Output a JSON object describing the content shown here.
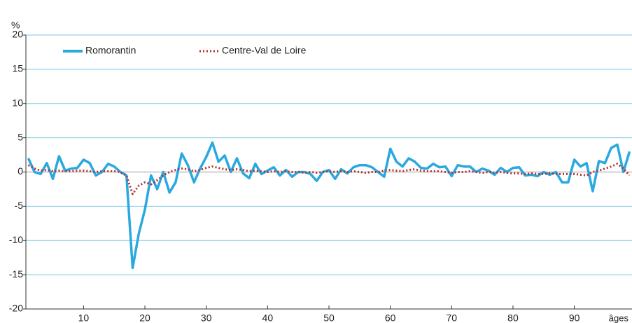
{
  "chart_data": {
    "type": "line",
    "ylabel": "%",
    "xlabel": "âges",
    "x": [
      1,
      2,
      3,
      4,
      5,
      6,
      7,
      8,
      9,
      10,
      11,
      12,
      13,
      14,
      15,
      16,
      17,
      18,
      19,
      20,
      21,
      22,
      23,
      24,
      25,
      26,
      27,
      28,
      29,
      30,
      31,
      32,
      33,
      34,
      35,
      36,
      37,
      38,
      39,
      40,
      41,
      42,
      43,
      44,
      45,
      46,
      47,
      48,
      49,
      50,
      51,
      52,
      53,
      54,
      55,
      56,
      57,
      58,
      59,
      60,
      61,
      62,
      63,
      64,
      65,
      66,
      67,
      68,
      69,
      70,
      71,
      72,
      73,
      74,
      75,
      76,
      77,
      78,
      79,
      80,
      81,
      82,
      83,
      84,
      85,
      86,
      87,
      88,
      89,
      90,
      91,
      92,
      93,
      94,
      95,
      96,
      97,
      98,
      99
    ],
    "series": [
      {
        "name": "Romorantin",
        "color": "#29a9e0",
        "style": "solid",
        "values": [
          2,
          0,
          -0.3,
          1.3,
          -1,
          2.3,
          0.2,
          0.5,
          0.6,
          1.8,
          1.3,
          -0.5,
          0,
          1.2,
          0.8,
          0,
          -0.5,
          -14,
          -9,
          -5.5,
          -0.5,
          -2.5,
          0,
          -3,
          -1.5,
          2.7,
          1,
          -1.5,
          0.5,
          2.2,
          4.3,
          1.5,
          2.4,
          0,
          2,
          -0.2,
          -0.9,
          1.2,
          -0.3,
          0.2,
          0.7,
          -0.5,
          0.3,
          -0.7,
          0,
          0,
          -0.3,
          -1.3,
          0,
          0.3,
          -1,
          0.4,
          -0.2,
          0.7,
          1,
          1,
          0.7,
          0,
          -0.7,
          3.4,
          1.5,
          0.8,
          2,
          1.5,
          0.6,
          0.5,
          1.2,
          0.7,
          0.8,
          -0.6,
          1,
          0.8,
          0.8,
          0,
          0.5,
          0.2,
          -0.4,
          0.6,
          0,
          0.6,
          0.7,
          -0.5,
          -0.4,
          -0.6,
          0,
          -0.4,
          0,
          -1.5,
          -1.5,
          1.8,
          0.8,
          1.3,
          -2.8,
          1.6,
          1.3,
          3.5,
          4,
          0,
          3
        ]
      },
      {
        "name": "Centre-Val de Loire",
        "color": "#b5302b",
        "style": "dotted",
        "values": [
          1,
          0.5,
          0.2,
          0.3,
          0.1,
          0.2,
          0.1,
          0.1,
          0.2,
          0.2,
          0.1,
          0,
          0.1,
          0.1,
          0.1,
          0,
          -0.5,
          -3.2,
          -2,
          -1.5,
          -1.8,
          -1.2,
          -0.5,
          0,
          0.3,
          0.5,
          0.4,
          0.1,
          0.3,
          0.6,
          0.8,
          0.6,
          0.4,
          0.3,
          0.4,
          0.3,
          0.1,
          0.2,
          0.1,
          0,
          0.1,
          0,
          0.1,
          0,
          0,
          -0.1,
          0,
          -0.1,
          0,
          0.1,
          0,
          0.1,
          0,
          0.1,
          0,
          -0.1,
          0,
          0,
          0.2,
          0.3,
          0.2,
          0.1,
          0.3,
          0.4,
          0.2,
          0.1,
          0.1,
          0.1,
          0,
          -0.1,
          0,
          0,
          0.1,
          0,
          -0.1,
          0,
          -0.1,
          0,
          -0.1,
          -0.2,
          -0.2,
          -0.3,
          -0.2,
          -0.3,
          -0.3,
          -0.2,
          -0.3,
          -0.3,
          -0.3,
          -0.3,
          -0.4,
          -0.5,
          0,
          0.2,
          0.5,
          0.8,
          1.2,
          0.5,
          -0.5
        ]
      }
    ],
    "xlim": [
      0.6,
      99.4
    ],
    "xticks": [
      10,
      20,
      30,
      40,
      50,
      60,
      70,
      80,
      90
    ],
    "ylim": [
      -20,
      20
    ],
    "yticks": [
      -20,
      -15,
      -10,
      -5,
      0,
      5,
      10,
      15,
      20
    ],
    "grid": true,
    "legend": "top-left"
  }
}
